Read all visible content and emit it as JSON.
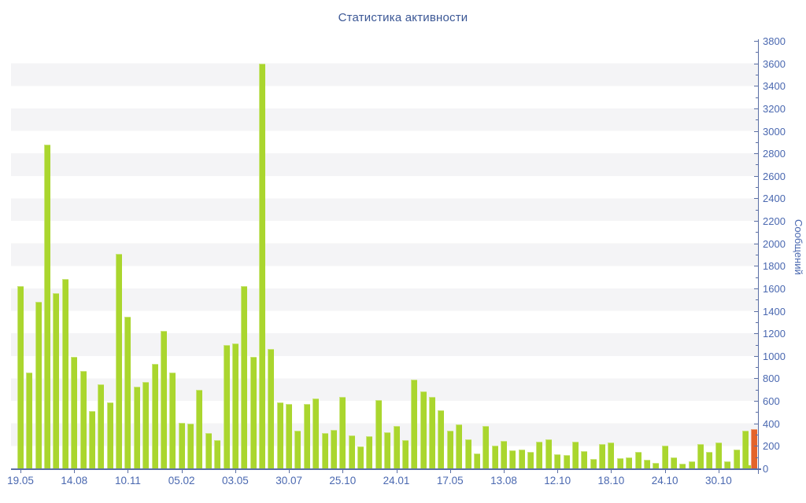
{
  "title": "Статистика активности",
  "y_axis": {
    "label": "Сообщений",
    "min": 0,
    "max": 3800,
    "major_step": 200,
    "minor_step": 100,
    "tick_labels": [
      "0",
      "200",
      "400",
      "600",
      "800",
      "1000",
      "1200",
      "1400",
      "1600",
      "1800",
      "2000",
      "2200",
      "2400",
      "2600",
      "2800",
      "3000",
      "3200",
      "3400",
      "3600",
      "3800"
    ]
  },
  "x_axis": {
    "tick_labels": [
      "19.05",
      "14.08",
      "10.11",
      "05.02",
      "03.05",
      "30.07",
      "25.10",
      "24.01",
      "17.05",
      "13.08",
      "12.10",
      "18.10",
      "24.10",
      "30.10"
    ],
    "label_every_n_bars": 6
  },
  "chart_data": {
    "type": "bar",
    "title": "Статистика активности",
    "xlabel": "",
    "ylabel": "Сообщений",
    "ylim": [
      0,
      3800
    ],
    "grid": "alternating horizontal stripes every 200 units",
    "legend": "none",
    "values": [
      1620,
      850,
      1480,
      2880,
      1560,
      1685,
      990,
      865,
      510,
      745,
      590,
      1905,
      1345,
      725,
      765,
      930,
      1225,
      855,
      405,
      400,
      700,
      315,
      255,
      1095,
      1110,
      1620,
      995,
      3600,
      1060,
      590,
      570,
      335,
      575,
      620,
      315,
      345,
      635,
      295,
      195,
      285,
      605,
      320,
      375,
      255,
      790,
      685,
      635,
      515,
      335,
      390,
      260,
      130,
      375,
      205,
      245,
      160,
      170,
      145,
      240,
      260,
      125,
      120,
      240,
      155,
      85,
      220,
      230,
      90,
      95,
      150,
      80,
      50,
      200,
      95,
      45,
      65,
      220,
      145,
      230,
      60,
      165,
      335,
      350
    ],
    "last_bar": {
      "color_role": "current-period-highlight",
      "value": 350,
      "partial_green_base_value": 30
    },
    "x_labeled_bars": "every 6th bar starting with the first",
    "colors": {
      "bar_green": "#aad62e",
      "bar_orange": "#e4632a",
      "stripe_gray": "#f4f4f6",
      "axis_line": "#5b6fa5",
      "tick_text": "#4a68b0",
      "title_text": "#3b5795"
    }
  }
}
